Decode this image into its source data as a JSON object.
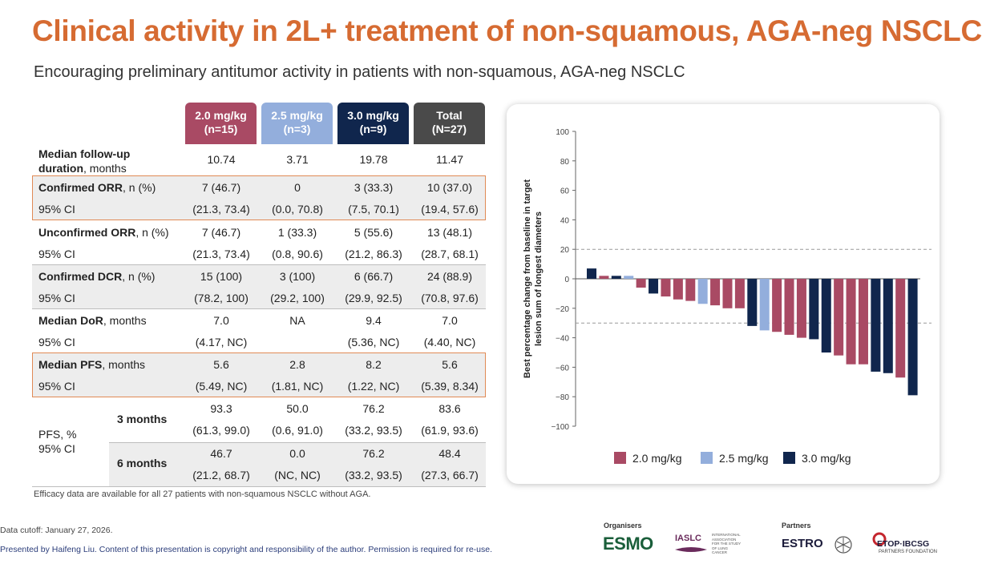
{
  "title": "Clinical activity in 2L+ treatment of non-squamous, AGA-neg NSCLC",
  "subtitle": "Encouraging preliminary antitumor activity in patients with non-squamous, AGA-neg NSCLC",
  "colors": {
    "dose_2_0": "#a94a64",
    "dose_2_5": "#93aedc",
    "dose_3_0": "#10264d",
    "total": "#4a4a4a",
    "accent": "#d66b32"
  },
  "table": {
    "headers": [
      {
        "line1": "2.0 mg/kg",
        "line2": "(n=15)"
      },
      {
        "line1": "2.5 mg/kg",
        "line2": "(n=3)"
      },
      {
        "line1": "3.0 mg/kg",
        "line2": "(n=9)"
      },
      {
        "line1": "Total",
        "line2": "(N=27)"
      }
    ],
    "followup": {
      "label_bold": "Median follow-up",
      "label_bold2": "duration",
      "label_rest": ", months",
      "values": [
        "10.74",
        "3.71",
        "19.78",
        "11.47"
      ]
    },
    "confirmed_orr": {
      "label_bold": "Confirmed ORR",
      "label_rest": ", n (%)",
      "values": [
        "7 (46.7)",
        "0",
        "3 (33.3)",
        "10 (37.0)"
      ],
      "ci_label": "95% CI",
      "ci": [
        "(21.3, 73.4)",
        "(0.0, 70.8)",
        "(7.5, 70.1)",
        "(19.4, 57.6)"
      ]
    },
    "unconfirmed_orr": {
      "label_bold": "Unconfirmed ORR",
      "label_rest": ", n (%)",
      "values": [
        "7 (46.7)",
        "1 (33.3)",
        "5 (55.6)",
        "13 (48.1)"
      ],
      "ci_label": "95% CI",
      "ci": [
        "(21.3, 73.4)",
        "(0.8, 90.6)",
        "(21.2, 86.3)",
        "(28.7, 68.1)"
      ]
    },
    "confirmed_dcr": {
      "label_bold": "Confirmed DCR",
      "label_rest": ", n (%)",
      "values": [
        "15 (100)",
        "3 (100)",
        "6 (66.7)",
        "24 (88.9)"
      ],
      "ci_label": "95% CI",
      "ci": [
        "(78.2, 100)",
        "(29.2, 100)",
        "(29.9, 92.5)",
        "(70.8, 97.6)"
      ]
    },
    "median_dor": {
      "label_bold": "Median DoR",
      "label_rest": ", months",
      "values": [
        "7.0",
        "NA",
        "9.4",
        "7.0"
      ],
      "ci_label": "95% CI",
      "ci": [
        "(4.17, NC)",
        "",
        "(5.36, NC)",
        "(4.40, NC)"
      ]
    },
    "median_pfs": {
      "label_bold": "Median PFS",
      "label_rest": ", months",
      "values": [
        "5.6",
        "2.8",
        "8.2",
        "5.6"
      ],
      "ci_label": "95% CI",
      "ci": [
        "(5.49, NC)",
        "(1.81, NC)",
        "(1.22, NC)",
        "(5.39, 8.34)"
      ]
    },
    "pfs_rate": {
      "label1": "PFS, %",
      "label2": "95% CI",
      "m3": {
        "label": "3 months",
        "values": [
          "93.3",
          "50.0",
          "76.2",
          "83.6"
        ],
        "ci": [
          "(61.3, 99.0)",
          "(0.6, 91.0)",
          "(33.2, 93.5)",
          "(61.9, 93.6)"
        ]
      },
      "m6": {
        "label": "6 months",
        "values": [
          "46.7",
          "0.0",
          "76.2",
          "48.4"
        ],
        "ci": [
          "(21.2, 68.7)",
          "(NC, NC)",
          "(33.2, 93.5)",
          "(27.3, 66.7)"
        ]
      }
    },
    "footnote": "Efficacy data are available for all 27 patients with non-squamous NSCLC without AGA."
  },
  "chart_data": {
    "type": "bar",
    "ylabel": "Best percentage change from baseline in target lesion sum of longest diameters",
    "ylim": [
      -100,
      100
    ],
    "yticks": [
      "100",
      "80",
      "60",
      "40",
      "20",
      "0",
      "−20",
      "−40",
      "−60",
      "−80",
      "−100"
    ],
    "reference_lines": [
      20,
      -30
    ],
    "grid": false,
    "legend_position": "bottom",
    "series_legend": [
      {
        "name": "2.0 mg/kg",
        "color": "#a94a64"
      },
      {
        "name": "2.5 mg/kg",
        "color": "#93aedc"
      },
      {
        "name": "3.0 mg/kg",
        "color": "#10264d"
      }
    ],
    "bars": [
      {
        "value": 7,
        "group": 2
      },
      {
        "value": 2,
        "group": 0
      },
      {
        "value": 2,
        "group": 2
      },
      {
        "value": 2,
        "group": 1
      },
      {
        "value": -6,
        "group": 0
      },
      {
        "value": -10,
        "group": 2
      },
      {
        "value": -12,
        "group": 0
      },
      {
        "value": -14,
        "group": 0
      },
      {
        "value": -15,
        "group": 0
      },
      {
        "value": -17,
        "group": 1
      },
      {
        "value": -18,
        "group": 0
      },
      {
        "value": -20,
        "group": 0
      },
      {
        "value": -20,
        "group": 0
      },
      {
        "value": -32,
        "group": 2
      },
      {
        "value": -35,
        "group": 1
      },
      {
        "value": -36,
        "group": 0
      },
      {
        "value": -38,
        "group": 0
      },
      {
        "value": -40,
        "group": 0
      },
      {
        "value": -41,
        "group": 2
      },
      {
        "value": -50,
        "group": 2
      },
      {
        "value": -52,
        "group": 0
      },
      {
        "value": -58,
        "group": 0
      },
      {
        "value": -58,
        "group": 0
      },
      {
        "value": -63,
        "group": 2
      },
      {
        "value": -64,
        "group": 2
      },
      {
        "value": -67,
        "group": 0
      },
      {
        "value": -79,
        "group": 2
      }
    ]
  },
  "footer": {
    "cutoff": "Data cutoff: January 27, 2026.",
    "presented": "Presented by Haifeng Liu. Content of this presentation is copyright and responsibility of the author. Permission is required for re-use.",
    "organisers_label": "Organisers",
    "partners_label": "Partners",
    "esmo": "ESMO",
    "iaslc": "IASLC",
    "iaslc_sub": "INTERNATIONAL ASSOCIATION FOR THE STUDY OF LUNG CANCER",
    "estro": "ESTRO",
    "etop": "ETOP·IBCSG",
    "etop_sub": "PARTNERS FOUNDATION"
  }
}
